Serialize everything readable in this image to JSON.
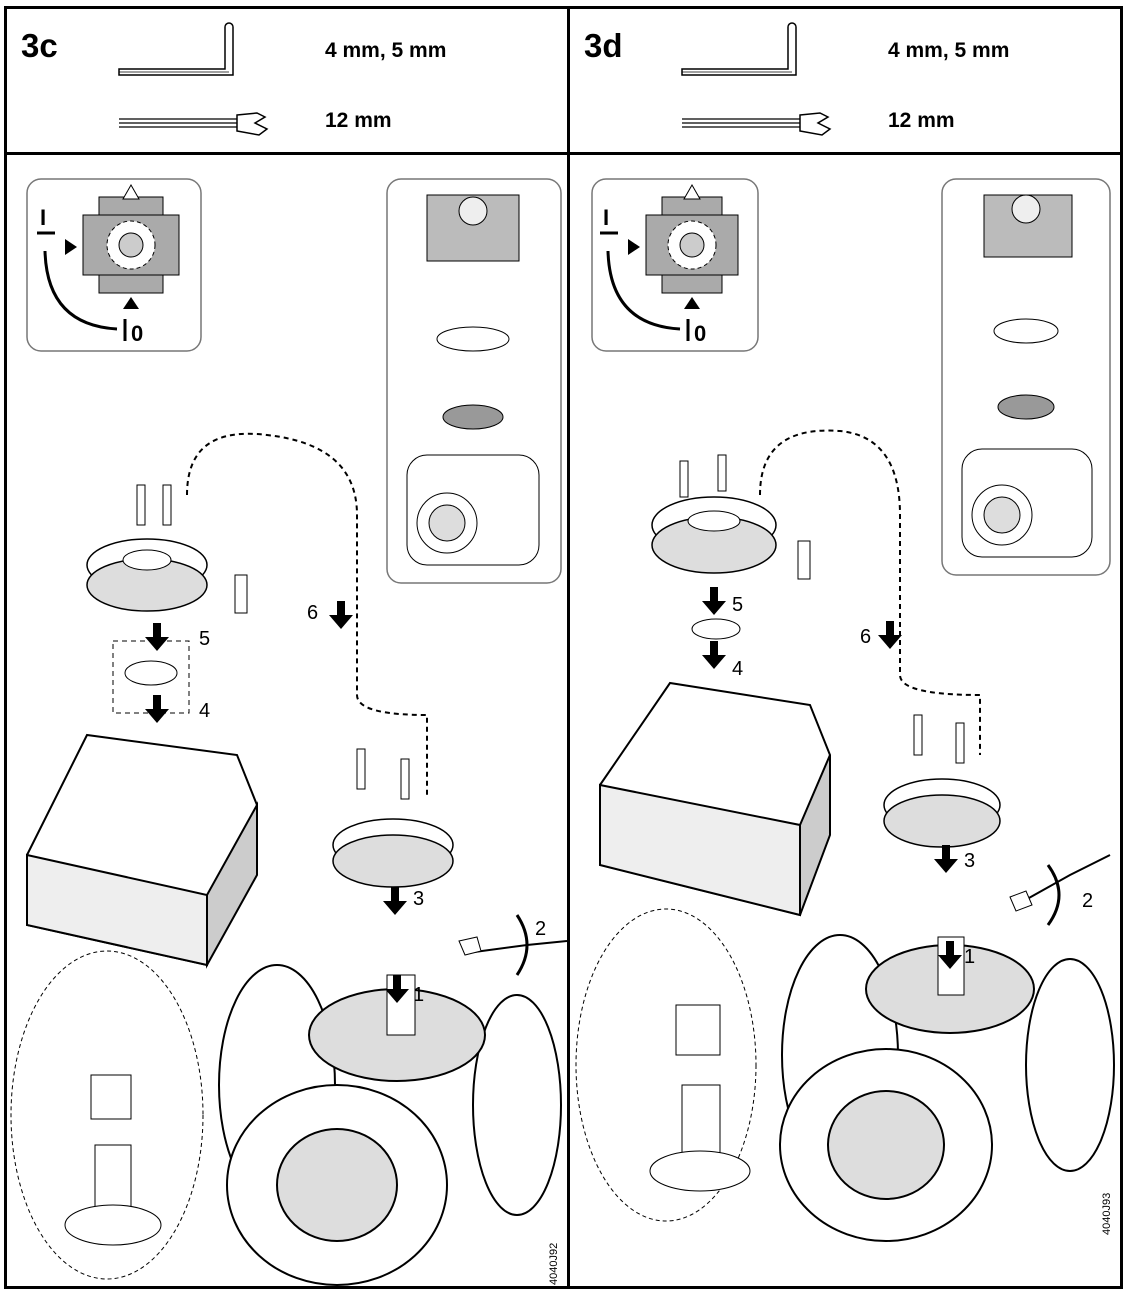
{
  "panels": [
    {
      "code": "3c",
      "tool_hex": "4 mm, 5 mm",
      "tool_wrench": "12 mm",
      "position_marks": {
        "open": "I",
        "closed": "0"
      },
      "steps": [
        "1",
        "2",
        "3",
        "4",
        "5",
        "6"
      ],
      "reference": "4040J92"
    },
    {
      "code": "3d",
      "tool_hex": "4 mm, 5 mm",
      "tool_wrench": "12 mm",
      "position_marks": {
        "open": "I",
        "closed": "0"
      },
      "steps": [
        "1",
        "2",
        "3",
        "4",
        "5",
        "6"
      ],
      "reference": "4040J93"
    }
  ],
  "icons": [
    "hex-key-icon",
    "wrench-icon",
    "triangle-marker-icon",
    "rotation-arrow-icon",
    "down-arrow-icon"
  ]
}
